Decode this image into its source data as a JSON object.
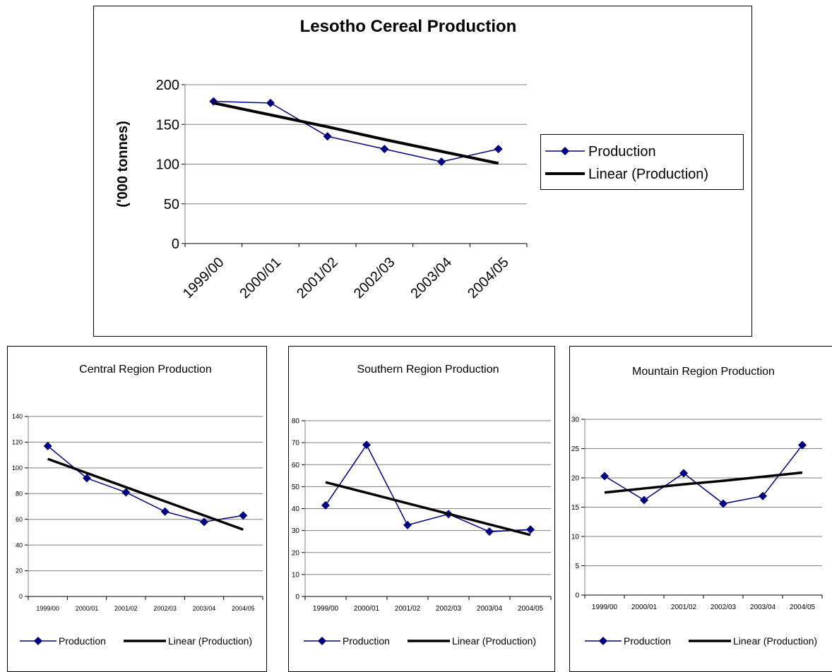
{
  "chart_data": [
    {
      "type": "line",
      "title": "Lesotho Cereal Production",
      "y_label": "('000 tonnes)",
      "categories": [
        "1999/00",
        "2000/01",
        "2001/02",
        "2002/03",
        "2003/04",
        "2004/05"
      ],
      "series": [
        {
          "name": "Production",
          "color": "#000080",
          "values": [
            179,
            177,
            135,
            119,
            103,
            119
          ]
        },
        {
          "name": "Linear (Production)",
          "color": "#000000",
          "values": [
            177,
            162,
            147,
            131,
            116,
            101
          ]
        }
      ],
      "ylim": [
        0,
        200
      ],
      "yticks": [
        0,
        50,
        100,
        150,
        200
      ],
      "grid": true,
      "legend": "right"
    },
    {
      "type": "line",
      "title": "Central Region Production",
      "categories": [
        "1999/00",
        "2000/01",
        "2001/02",
        "2002/03",
        "2003/04",
        "2004/05"
      ],
      "series": [
        {
          "name": "Production",
          "color": "#000080",
          "values": [
            117,
            92,
            81,
            66,
            58,
            63
          ]
        },
        {
          "name": "Linear (Production)",
          "color": "#000000",
          "values": [
            107,
            96,
            85,
            74,
            63,
            52
          ]
        }
      ],
      "ylim": [
        0,
        140
      ],
      "yticks": [
        0,
        20,
        40,
        60,
        80,
        100,
        120,
        140
      ],
      "grid": true,
      "legend": "bottom"
    },
    {
      "type": "line",
      "title": "Southern Region Production",
      "categories": [
        "1999/00",
        "2000/01",
        "2001/02",
        "2002/03",
        "2003/04",
        "2004/05"
      ],
      "series": [
        {
          "name": "Production",
          "color": "#000080",
          "values": [
            41.5,
            69,
            32.5,
            37.5,
            29.5,
            30.5
          ]
        },
        {
          "name": "Linear (Production)",
          "color": "#000000",
          "values": [
            52,
            47.2,
            42.4,
            37.6,
            32.8,
            28
          ]
        }
      ],
      "ylim": [
        0,
        80
      ],
      "yticks": [
        0,
        10,
        20,
        30,
        40,
        50,
        60,
        70,
        80
      ],
      "grid": true,
      "legend": "bottom"
    },
    {
      "type": "line",
      "title": "Mountain Region Production",
      "categories": [
        "1999/00",
        "2000/01",
        "2001/02",
        "2002/03",
        "2003/04",
        "2004/05"
      ],
      "series": [
        {
          "name": "Production",
          "color": "#000080",
          "values": [
            20.3,
            16.2,
            20.8,
            15.6,
            16.9,
            25.6
          ]
        },
        {
          "name": "Linear (Production)",
          "color": "#000000",
          "values": [
            17.5,
            18.2,
            18.9,
            19.5,
            20.2,
            20.9
          ]
        }
      ],
      "ylim": [
        0,
        30
      ],
      "yticks": [
        0,
        5,
        10,
        15,
        20,
        25,
        30
      ],
      "grid": true,
      "legend": "bottom"
    }
  ]
}
